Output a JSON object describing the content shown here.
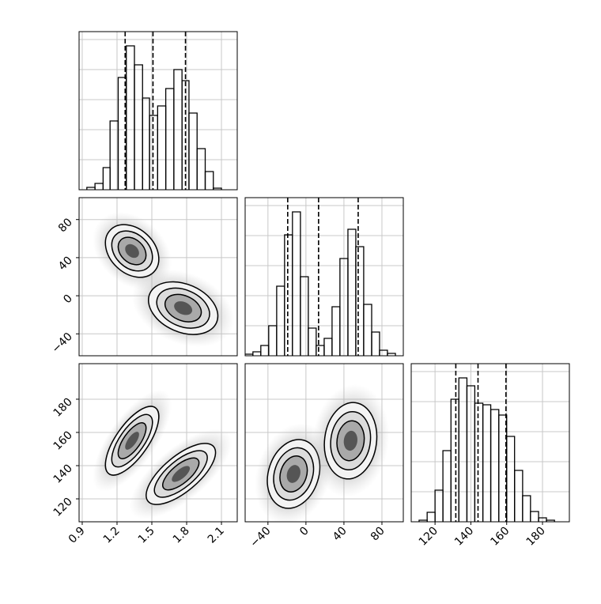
{
  "chart_data": {
    "type": "corner",
    "params": [
      {
        "xlim": [
          0.873,
          2.236
        ],
        "xticks": [
          0.9,
          1.2,
          1.5,
          1.8,
          2.1
        ],
        "hist": {
          "ylim": [
            0,
            200
          ],
          "bins": [
            0.94,
            1.01,
            1.08,
            1.14,
            1.21,
            1.28,
            1.35,
            1.42,
            1.48,
            1.55,
            1.62,
            1.69,
            1.76,
            1.82,
            1.89,
            1.96,
            2.03,
            2.1
          ],
          "counts": [
            3,
            8,
            28,
            87,
            142,
            182,
            158,
            116,
            94,
            106,
            128,
            152,
            138,
            97,
            52,
            23,
            2
          ]
        },
        "quantiles": [
          1.27,
          1.51,
          1.79
        ]
      },
      {
        "xlim": [
          -64,
          102.5
        ],
        "ylim": [
          -63,
          103
        ],
        "xticks": [
          {
            "value": -40,
            "label": "−40"
          },
          0,
          40,
          80
        ],
        "yticks": [
          {
            "value": -40,
            "label": "−40"
          },
          0,
          40,
          80
        ],
        "hist": {
          "ylim": [
            0,
            200
          ],
          "bins": [
            -64.2,
            -55.8,
            -47.5,
            -39.2,
            -30.8,
            -22.5,
            -14.2,
            -5.8,
            2.5,
            10.8,
            19.2,
            27.5,
            35.8,
            44.2,
            52.5,
            60.8,
            69.2,
            77.5,
            85.8,
            94.2
          ],
          "counts": [
            2,
            5,
            13,
            38,
            88,
            153,
            182,
            100,
            35,
            13,
            22,
            62,
            123,
            160,
            138,
            65,
            30,
            7,
            3
          ]
        },
        "quantiles": [
          -19.2,
          13.3,
          55
        ]
      },
      {
        "xlim": [
          106.7,
          195
        ],
        "ylim": [
          106.2,
          201.4
        ],
        "xticks": [
          120,
          140,
          160,
          180
        ],
        "yticks": [
          120,
          140,
          160,
          180
        ],
        "hist": {
          "ylim": [
            0,
            200
          ],
          "bins": [
            111.1,
            115.6,
            120,
            124.4,
            128.9,
            133.3,
            137.8,
            142.2,
            146.7,
            151.1,
            155.6,
            160,
            164.4,
            168.9,
            173.3,
            177.8,
            182.2,
            186.7
          ],
          "counts": [
            2,
            12,
            40,
            90,
            155,
            182,
            172,
            150,
            148,
            142,
            135,
            108,
            65,
            33,
            13,
            5,
            2
          ]
        },
        "quantiles": [
          131.6,
          144,
          159.6
        ]
      }
    ],
    "pairs": [
      {
        "clusters": [
          {
            "x": 1.33,
            "y": 47,
            "sx": 0.1,
            "sy": 12,
            "rho": -0.3
          },
          {
            "x": 1.77,
            "y": -13,
            "sx": 0.13,
            "sy": 12,
            "rho": -0.3
          }
        ]
      },
      {
        "clusters": [
          {
            "x": 1.33,
            "y": 155,
            "sx": 0.1,
            "sy": 9,
            "rho": 0.7
          },
          {
            "x": 1.75,
            "y": 135,
            "sx": 0.13,
            "sy": 8,
            "rho": 0.7
          }
        ]
      },
      {
        "clusters": [
          {
            "x": -13,
            "y": 135,
            "sx": 12,
            "sy": 9,
            "rho": 0.2
          },
          {
            "x": 47,
            "y": 155,
            "sx": 12,
            "sy": 10,
            "rho": 0.1
          }
        ]
      }
    ],
    "grid": true,
    "color": "#000000"
  }
}
